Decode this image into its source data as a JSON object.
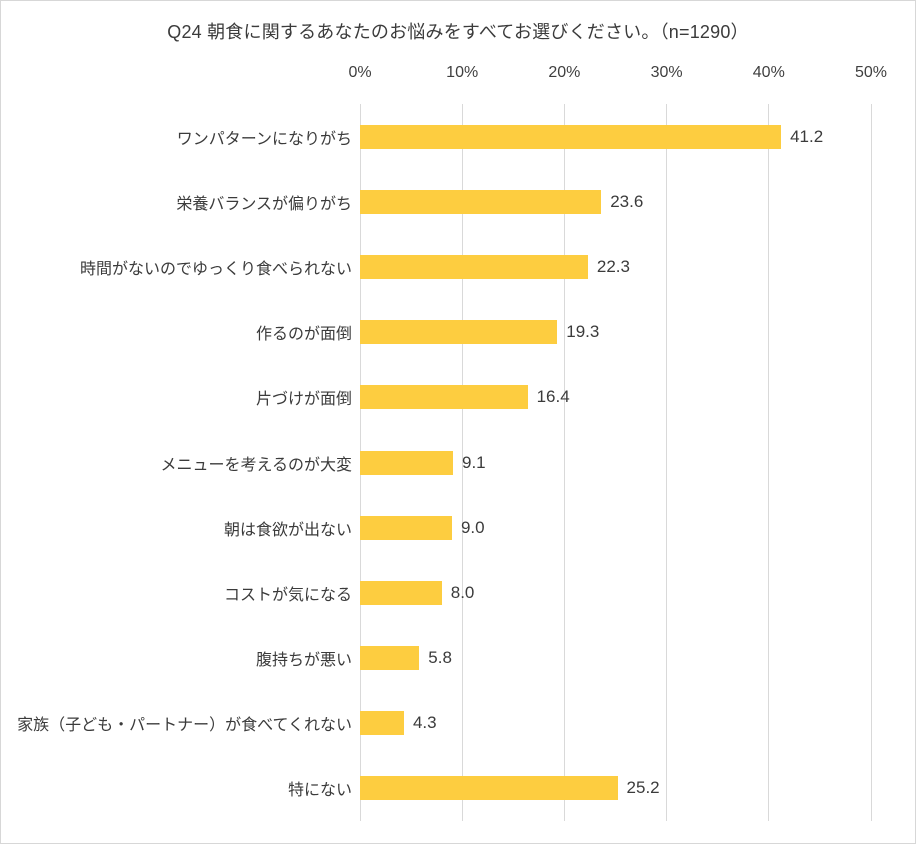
{
  "title": "Q24 朝食に関するあなたのお悩みをすべてお選びください。（n=1290）",
  "colors": {
    "bar": "#fdcd40",
    "grid": "#d9d9d9",
    "border": "#d7d7d7",
    "text": "#3b3b3b",
    "background": "#ffffff"
  },
  "chart_data": {
    "type": "bar",
    "orientation": "horizontal",
    "title": "Q24 朝食に関するあなたのお悩みをすべてお選びください。（n=1290）",
    "categories": [
      "ワンパターンになりがち",
      "栄養バランスが偏りがち",
      "時間がないのでゆっくり食べられない",
      "作るのが面倒",
      "片づけが面倒",
      "メニューを考えるのが大変",
      "朝は食欲が出ない",
      "コストが気になる",
      "腹持ちが悪い",
      "家族（子ども・パートナー）が食べてくれない",
      "特にない"
    ],
    "values": [
      41.2,
      23.6,
      22.3,
      19.3,
      16.4,
      9.1,
      9.0,
      8.0,
      5.8,
      4.3,
      25.2
    ],
    "value_labels": [
      "41.2",
      "23.6",
      "22.3",
      "19.3",
      "16.4",
      "9.1",
      "9.0",
      "8.0",
      "5.8",
      "4.3",
      "25.2"
    ],
    "xlabel": "",
    "ylabel": "",
    "xlim": [
      0,
      50
    ],
    "x_ticks": [
      "0%",
      "10%",
      "20%",
      "30%",
      "40%",
      "50%"
    ],
    "grid": true,
    "axis_position": "top",
    "legend": false
  }
}
